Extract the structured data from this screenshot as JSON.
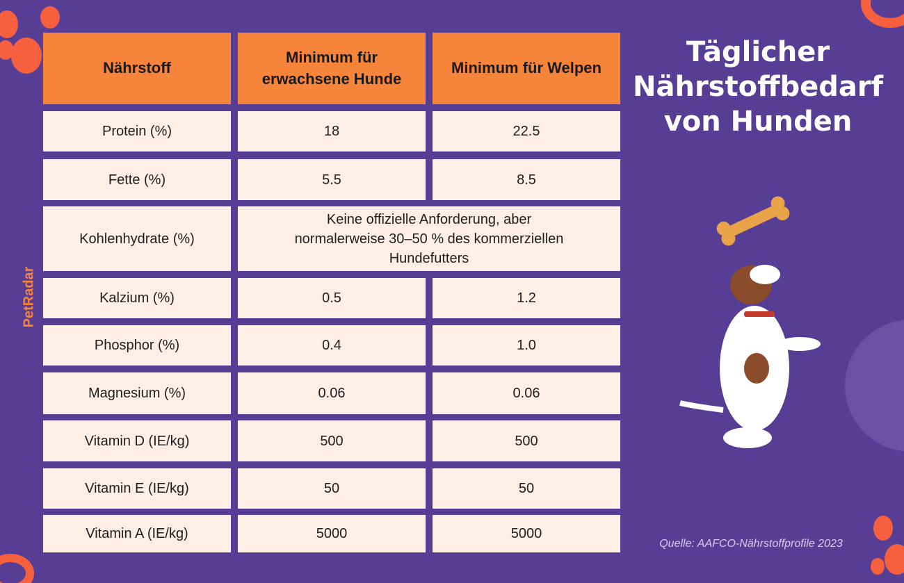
{
  "brand": "PetRadar",
  "title": [
    "Täglicher",
    "Nährstoffbedarf",
    "von Hunden"
  ],
  "table": {
    "header": [
      "Nährstoff",
      "Minimum für erwachsene Hunde",
      "Minimum für Welpen"
    ],
    "rows": [
      [
        "Protein (%)",
        "18",
        "22.5"
      ],
      [
        "Fette (%)",
        "5.5",
        "8.5"
      ],
      [
        "Kohlenhydrate (%)",
        "Keine offizielle Anforderung, aber normalerweise 30–50 % des kommerziellen Hundefutters"
      ],
      [
        "Kalzium (%)",
        "0.5",
        "1.2"
      ],
      [
        "Phosphor (%)",
        "0.4",
        "1.0"
      ],
      [
        "Magnesium (%)",
        "0.06",
        "0.06"
      ],
      [
        "Vitamin D (IE/kg)",
        "500",
        "500"
      ],
      [
        "Vitamin E (IE/kg)",
        "50",
        "50"
      ],
      [
        "Vitamin A (IE/kg)",
        "5000",
        "5000"
      ]
    ]
  },
  "source": "Quelle: AAFCO-Nährstoffprofile 2023"
}
